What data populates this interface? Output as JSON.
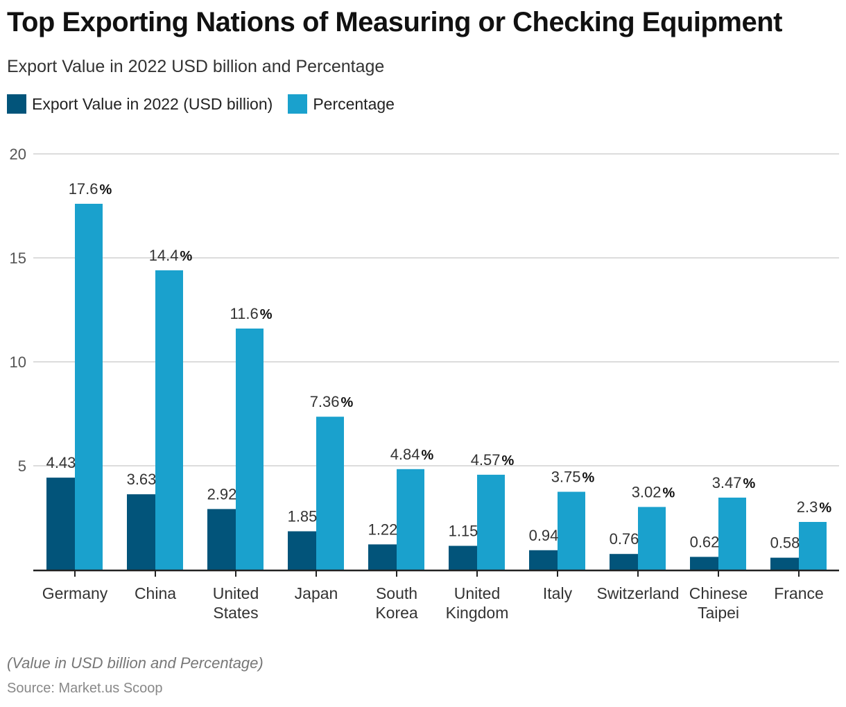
{
  "header": {
    "title": "Top Exporting Nations of Measuring or Checking Equipment",
    "subtitle": "Export Value in 2022 USD billion and Percentage"
  },
  "legend": [
    {
      "label": "Export Value in 2022 (USD billion)",
      "color": "#02547a"
    },
    {
      "label": "Percentage",
      "color": "#1aa1cd"
    }
  ],
  "footer": {
    "note": "(Value in USD billion and Percentage)",
    "source": "Source: Market.us Scoop"
  },
  "chart_data": {
    "type": "bar",
    "title": "Top Exporting Nations of Measuring or Checking Equipment",
    "subtitle": "Export Value in 2022 USD billion and Percentage",
    "xlabel": "",
    "ylabel": "",
    "ylim": [
      0,
      20
    ],
    "yticks": [
      5,
      10,
      15,
      20
    ],
    "grid": true,
    "legend_position": "top-left",
    "categories": [
      [
        "Germany"
      ],
      [
        "China"
      ],
      [
        "United",
        "States"
      ],
      [
        "Japan"
      ],
      [
        "South",
        "Korea"
      ],
      [
        "United",
        "Kingdom"
      ],
      [
        "Italy"
      ],
      [
        "Switzerland"
      ],
      [
        "Chinese",
        "Taipei"
      ],
      [
        "France"
      ]
    ],
    "series": [
      {
        "name": "Export Value in 2022 (USD billion)",
        "color": "#02547a",
        "values": [
          4.43,
          3.63,
          2.92,
          1.85,
          1.22,
          1.15,
          0.94,
          0.76,
          0.62,
          0.58
        ],
        "labels": [
          "4.43",
          "3.63",
          "2.92",
          "1.85",
          "1.22",
          "1.15",
          "0.94",
          "0.76",
          "0.62",
          "0.58"
        ],
        "suffix": ""
      },
      {
        "name": "Percentage",
        "color": "#1aa1cd",
        "values": [
          17.6,
          14.4,
          11.6,
          7.36,
          4.84,
          4.57,
          3.75,
          3.02,
          3.47,
          2.3
        ],
        "labels": [
          "17.6",
          "14.4",
          "11.6",
          "7.36",
          "4.84",
          "4.57",
          "3.75",
          "3.02",
          "3.47",
          "2.3"
        ],
        "suffix": "%"
      }
    ]
  }
}
